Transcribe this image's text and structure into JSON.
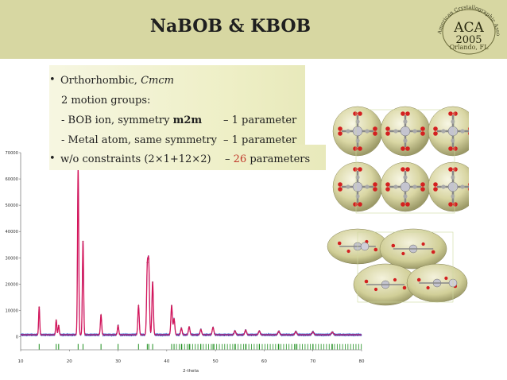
{
  "slide": {
    "title": "NaBOB & KBOB",
    "logo": {
      "name": "ACA",
      "year": "2005",
      "arc_text": "American Crystallographic Association",
      "city": "Orlando, FL"
    },
    "bullets": {
      "b1_plain": "Orthorhombic, ",
      "b1_italic": "Cmcm",
      "line2": "2 motion groups:",
      "line3_a": "- BOB ion, symmetry ",
      "line3_b": "m2m",
      "line3_c": "– 1 parameter",
      "line4_a": "- Metal atom, same symmetry",
      "line4_c": "– 1 parameter",
      "b2_a": "w/o constraints (2×1+12×2)",
      "b2_b": "– ",
      "b2_num": "26",
      "b2_c": " parameters"
    },
    "colors": {
      "title_bar": "#d7d7a2",
      "accent_red": "#c0392b",
      "obs": "#2e5fd1",
      "calc": "#d4145a",
      "ticks": "#1f8f1f"
    }
  },
  "chart_data": {
    "type": "line",
    "xlabel": "2-theta",
    "ylabel": "",
    "xlim": [
      10,
      80
    ],
    "ylim": [
      -5000,
      70000
    ],
    "x_ticks": [
      "10",
      "20",
      "30",
      "40",
      "50",
      "60",
      "70",
      "80"
    ],
    "y_ticks": [
      "0",
      "10000",
      "20000",
      "30000",
      "40000",
      "50000",
      "60000",
      "70000"
    ],
    "background": 700,
    "peaks": [
      {
        "x": 13.8,
        "y": 10500
      },
      {
        "x": 17.3,
        "y": 5500
      },
      {
        "x": 17.8,
        "y": 3500
      },
      {
        "x": 21.8,
        "y": 63000
      },
      {
        "x": 22.8,
        "y": 35500
      },
      {
        "x": 26.5,
        "y": 7500
      },
      {
        "x": 30.0,
        "y": 3500
      },
      {
        "x": 34.2,
        "y": 11000
      },
      {
        "x": 36.0,
        "y": 24500
      },
      {
        "x": 36.3,
        "y": 26000
      },
      {
        "x": 37.1,
        "y": 20000
      },
      {
        "x": 41.0,
        "y": 11000
      },
      {
        "x": 41.5,
        "y": 6000
      },
      {
        "x": 43.0,
        "y": 2500
      },
      {
        "x": 44.6,
        "y": 3000
      },
      {
        "x": 47.0,
        "y": 2000
      },
      {
        "x": 49.5,
        "y": 2800
      },
      {
        "x": 54.0,
        "y": 1500
      },
      {
        "x": 56.2,
        "y": 1800
      },
      {
        "x": 59.0,
        "y": 1400
      },
      {
        "x": 63.0,
        "y": 1300
      },
      {
        "x": 66.5,
        "y": 1200
      },
      {
        "x": 70.0,
        "y": 1100
      },
      {
        "x": 74.0,
        "y": 1000
      }
    ]
  }
}
